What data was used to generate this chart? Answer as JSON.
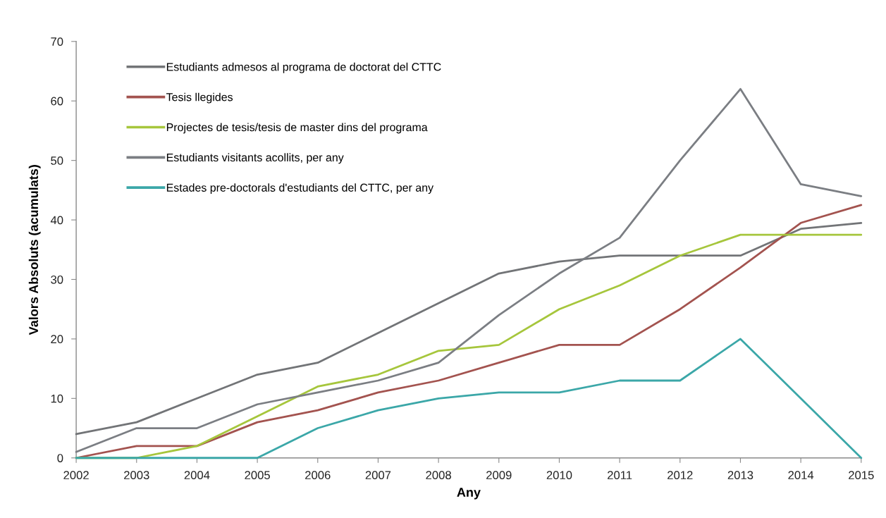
{
  "chart_data": {
    "type": "line",
    "xlabel": "Any",
    "ylabel": "Valors Absoluts (acumulats)",
    "x": [
      2002,
      2003,
      2004,
      2005,
      2006,
      2007,
      2008,
      2009,
      2010,
      2011,
      2012,
      2013,
      2014,
      2015
    ],
    "series": [
      {
        "name": "Estudiants admesos al programa de doctorat del CTTC",
        "color": "#727477",
        "values": [
          4,
          6,
          10,
          14,
          16,
          21,
          26,
          31,
          33,
          34,
          34,
          34,
          38.5,
          39.5
        ]
      },
      {
        "name": "Tesis llegides",
        "color": "#a3534f",
        "values": [
          0,
          2,
          2,
          6,
          8,
          11,
          13,
          16,
          19,
          19,
          25,
          32,
          39.5,
          42.5
        ]
      },
      {
        "name": "Projectes de tesis/tesis de master dins del programa",
        "color": "#a6c63c",
        "values": [
          0,
          0,
          2,
          7,
          12,
          14,
          18,
          19,
          25,
          29,
          34,
          37.5,
          37.5,
          37.5
        ]
      },
      {
        "name": "Estudiants visitants acollits, per any",
        "color": "#7b7e83",
        "values": [
          1,
          5,
          5,
          9,
          11,
          13,
          16,
          24,
          31,
          37,
          50,
          62,
          46,
          44
        ]
      },
      {
        "name": "Estades pre-doctorals d'estudiants del CTTC, per any",
        "color": "#3ba7a8",
        "values": [
          0,
          0,
          0,
          0,
          5,
          8,
          10,
          11,
          11,
          13,
          13,
          20,
          10,
          0
        ]
      }
    ],
    "xlim": [
      2002,
      2015
    ],
    "xticks": [
      2002,
      2003,
      2004,
      2005,
      2006,
      2007,
      2008,
      2009,
      2010,
      2011,
      2012,
      2013,
      2014,
      2015
    ],
    "ylim": [
      0,
      70
    ],
    "yticks": [
      0,
      10,
      20,
      30,
      40,
      50,
      60,
      70
    ],
    "legend": "top left"
  }
}
